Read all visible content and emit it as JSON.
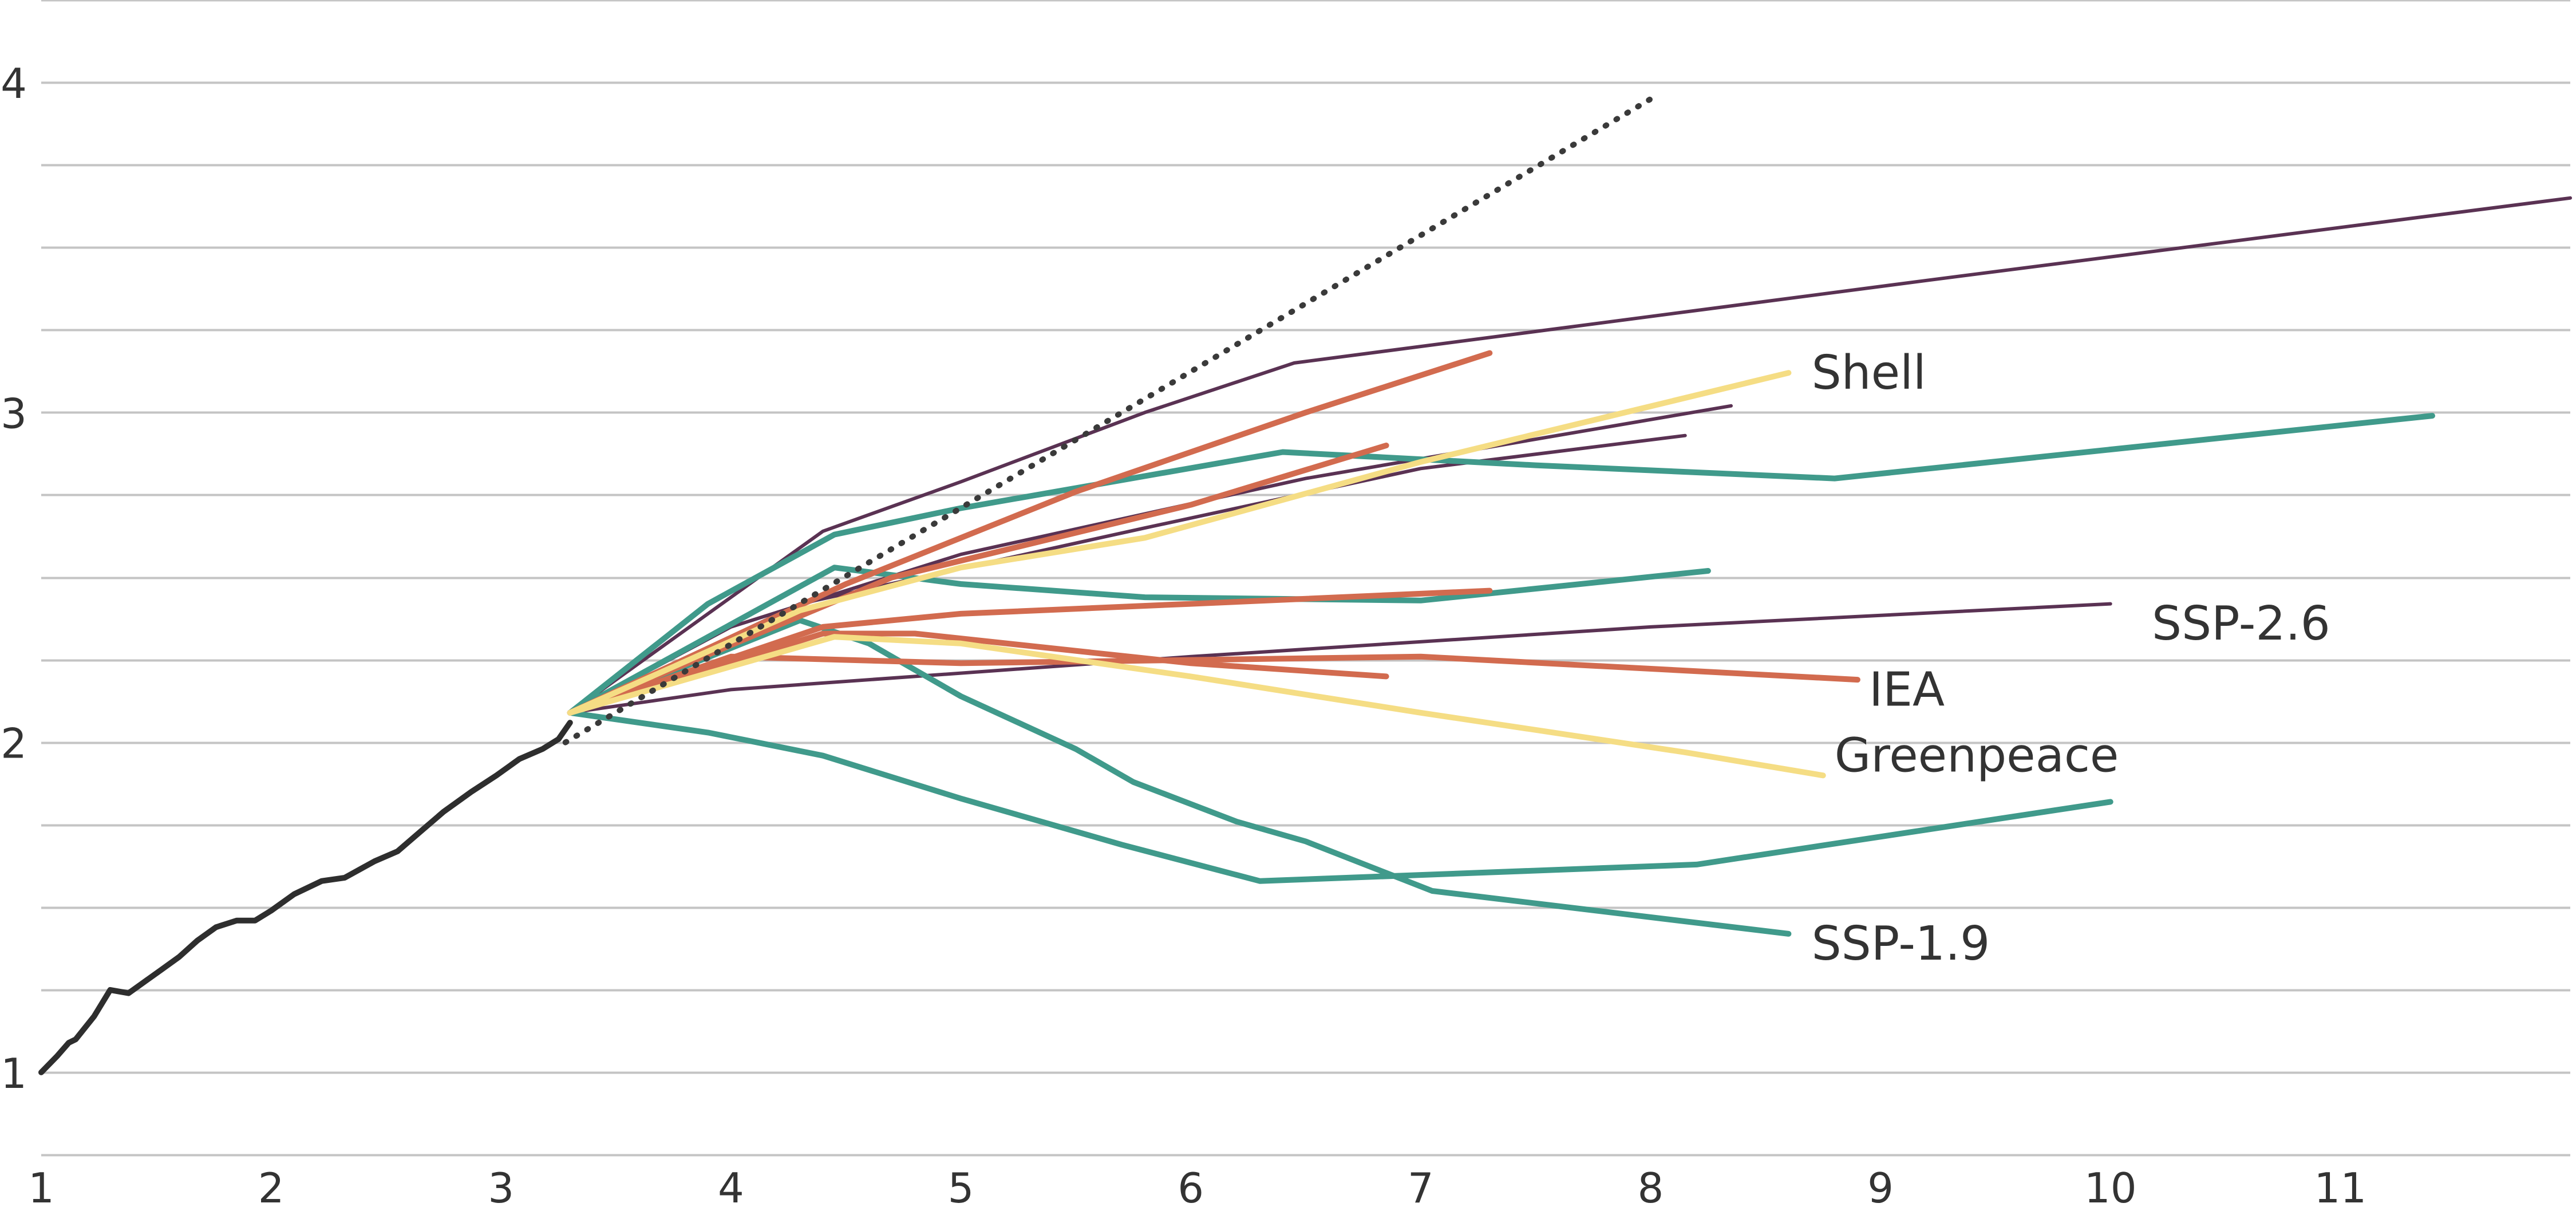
{
  "chart_data": {
    "type": "line",
    "title": "",
    "xlabel": "",
    "ylabel": "",
    "xlim": [
      1,
      12
    ],
    "ylim": [
      0.75,
      4.25
    ],
    "x_ticks": [
      1,
      2,
      3,
      4,
      5,
      6,
      7,
      8,
      9,
      10,
      11
    ],
    "y_ticks": [
      1,
      2,
      3,
      4
    ],
    "grid": "horizontal",
    "colors": {
      "history": "#2e2e2e",
      "trend": "#3a3a3a",
      "purple": "#5a3253",
      "teal": "#409a8b",
      "orange": "#d26b4f",
      "yellow": "#f5dd84",
      "grid": "#c4c4c4"
    },
    "series": [
      {
        "group": "history",
        "points": [
          [
            1.0,
            1.0
          ],
          [
            1.07,
            1.05
          ],
          [
            1.12,
            1.09
          ],
          [
            1.15,
            1.1
          ],
          [
            1.23,
            1.17
          ],
          [
            1.3,
            1.25
          ],
          [
            1.38,
            1.24
          ],
          [
            1.44,
            1.27
          ],
          [
            1.52,
            1.31
          ],
          [
            1.6,
            1.35
          ],
          [
            1.68,
            1.4
          ],
          [
            1.76,
            1.44
          ],
          [
            1.85,
            1.46
          ],
          [
            1.93,
            1.46
          ],
          [
            2.0,
            1.49
          ],
          [
            2.1,
            1.54
          ],
          [
            2.22,
            1.58
          ],
          [
            2.32,
            1.59
          ],
          [
            2.45,
            1.64
          ],
          [
            2.55,
            1.67
          ],
          [
            2.65,
            1.73
          ],
          [
            2.75,
            1.79
          ],
          [
            2.87,
            1.85
          ],
          [
            2.98,
            1.9
          ],
          [
            3.08,
            1.95
          ],
          [
            3.18,
            1.98
          ],
          [
            3.25,
            2.01
          ],
          [
            3.3,
            2.06
          ]
        ]
      },
      {
        "group": "trend",
        "points": [
          [
            3.28,
            2.0
          ],
          [
            8.0,
            3.95
          ]
        ]
      },
      {
        "group": "purple",
        "points": [
          [
            3.3,
            2.09
          ],
          [
            4.4,
            2.64
          ],
          [
            5.0,
            2.79
          ],
          [
            5.8,
            3.0
          ],
          [
            6.45,
            3.15
          ],
          [
            9.2,
            3.4
          ],
          [
            12.0,
            3.65
          ]
        ]
      },
      {
        "group": "purple",
        "points": [
          [
            3.3,
            2.09
          ],
          [
            4.0,
            2.35
          ],
          [
            5.0,
            2.57
          ],
          [
            6.5,
            2.8
          ],
          [
            8.35,
            3.02
          ]
        ]
      },
      {
        "group": "purple",
        "points": [
          [
            3.3,
            2.09
          ],
          [
            4.3,
            2.42
          ],
          [
            5.8,
            2.65
          ],
          [
            7.0,
            2.83
          ],
          [
            8.15,
            2.93
          ]
        ]
      },
      {
        "group": "purple",
        "points": [
          [
            3.3,
            2.09
          ],
          [
            4.0,
            2.16
          ],
          [
            6.0,
            2.26
          ],
          [
            8.0,
            2.35
          ],
          [
            10.0,
            2.42
          ]
        ]
      },
      {
        "group": "teal",
        "points": [
          [
            3.3,
            2.09
          ],
          [
            3.9,
            2.42
          ],
          [
            4.45,
            2.63
          ],
          [
            5.0,
            2.71
          ],
          [
            6.4,
            2.88
          ],
          [
            7.5,
            2.84
          ],
          [
            8.8,
            2.8
          ],
          [
            11.4,
            2.99
          ]
        ]
      },
      {
        "group": "teal",
        "points": [
          [
            3.3,
            2.09
          ],
          [
            4.45,
            2.53
          ],
          [
            5.0,
            2.48
          ],
          [
            5.8,
            2.44
          ],
          [
            7.0,
            2.43
          ],
          [
            8.25,
            2.52
          ]
        ]
      },
      {
        "group": "teal",
        "points": [
          [
            3.3,
            2.09
          ],
          [
            4.3,
            2.37
          ],
          [
            4.6,
            2.3
          ],
          [
            5.0,
            2.14
          ],
          [
            5.5,
            1.98
          ],
          [
            5.75,
            1.88
          ],
          [
            6.2,
            1.76
          ],
          [
            6.5,
            1.7
          ],
          [
            7.05,
            1.55
          ],
          [
            8.6,
            1.42
          ]
        ]
      },
      {
        "group": "teal",
        "points": [
          [
            3.3,
            2.09
          ],
          [
            3.9,
            2.03
          ],
          [
            4.4,
            1.96
          ],
          [
            5.0,
            1.83
          ],
          [
            5.7,
            1.69
          ],
          [
            6.3,
            1.58
          ],
          [
            8.2,
            1.63
          ],
          [
            10.0,
            1.82
          ]
        ]
      },
      {
        "group": "orange",
        "points": [
          [
            3.3,
            2.09
          ],
          [
            4.5,
            2.48
          ],
          [
            5.5,
            2.76
          ],
          [
            6.5,
            3.0
          ],
          [
            7.3,
            3.18
          ]
        ]
      },
      {
        "group": "orange",
        "points": [
          [
            3.3,
            2.09
          ],
          [
            4.7,
            2.5
          ],
          [
            6.0,
            2.72
          ],
          [
            6.85,
            2.9
          ]
        ]
      },
      {
        "group": "orange",
        "points": [
          [
            3.3,
            2.09
          ],
          [
            4.4,
            2.35
          ],
          [
            5.0,
            2.39
          ],
          [
            6.0,
            2.42
          ],
          [
            7.3,
            2.46
          ]
        ]
      },
      {
        "group": "orange",
        "points": [
          [
            3.3,
            2.09
          ],
          [
            4.4,
            2.33
          ],
          [
            4.8,
            2.33
          ],
          [
            6.0,
            2.24
          ],
          [
            6.85,
            2.2
          ]
        ]
      },
      {
        "group": "orange",
        "points": [
          [
            3.3,
            2.09
          ],
          [
            4.0,
            2.26
          ],
          [
            5.0,
            2.24
          ],
          [
            6.0,
            2.25
          ],
          [
            7.0,
            2.26
          ],
          [
            8.9,
            2.19
          ]
        ]
      },
      {
        "group": "yellow",
        "points": [
          [
            3.3,
            2.09
          ],
          [
            4.3,
            2.4
          ],
          [
            5.0,
            2.53
          ],
          [
            5.8,
            2.62
          ],
          [
            7.0,
            2.85
          ],
          [
            8.6,
            3.12
          ]
        ]
      },
      {
        "group": "yellow",
        "points": [
          [
            3.3,
            2.09
          ],
          [
            4.45,
            2.32
          ],
          [
            5.0,
            2.3
          ],
          [
            6.0,
            2.2
          ],
          [
            7.0,
            2.09
          ],
          [
            8.15,
            1.97
          ],
          [
            8.75,
            1.9
          ]
        ]
      }
    ],
    "annotations": [
      {
        "text": "Shell",
        "x": 8.7,
        "y": 3.12
      },
      {
        "text": "SSP-2.6",
        "x": 10.18,
        "y": 2.36
      },
      {
        "text": "IEA",
        "x": 8.95,
        "y": 2.16
      },
      {
        "text": "Greenpeace",
        "x": 8.8,
        "y": 1.96
      },
      {
        "text": "SSP-1.9",
        "x": 8.7,
        "y": 1.39
      }
    ]
  }
}
